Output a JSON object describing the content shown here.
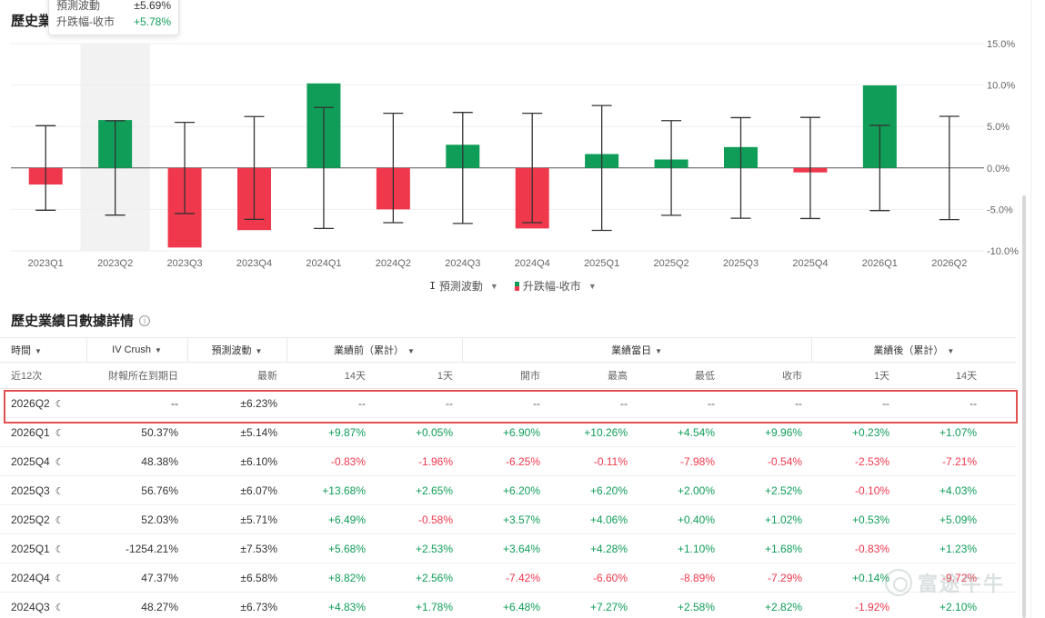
{
  "chart_title": "歷史業績日數據",
  "tooltip": {
    "rows": [
      {
        "label": "預測波動",
        "value": "±5.69%"
      },
      {
        "label": "升跌幅-收市",
        "value": "+5.78%"
      }
    ]
  },
  "legend": {
    "error_label": "預測波動",
    "bar_label": "升跌幅-收市"
  },
  "chart_data": {
    "type": "bar",
    "categories": [
      "2023Q1",
      "2023Q2",
      "2023Q3",
      "2023Q4",
      "2024Q1",
      "2024Q2",
      "2024Q3",
      "2024Q4",
      "2025Q1",
      "2025Q2",
      "2025Q3",
      "2025Q4",
      "2026Q1",
      "2026Q2"
    ],
    "series": [
      {
        "name": "升跌幅-收市",
        "values": [
          -2.0,
          5.78,
          -9.6,
          -7.5,
          10.2,
          -5.0,
          2.8,
          -7.3,
          1.68,
          1.02,
          2.52,
          -0.54,
          9.96,
          null
        ]
      },
      {
        "name": "預測波動",
        "values": [
          5.1,
          5.69,
          5.5,
          6.2,
          7.3,
          6.6,
          6.7,
          6.6,
          7.53,
          5.71,
          6.07,
          6.1,
          5.14,
          6.23
        ]
      }
    ],
    "y_ticks": [
      "15.0%",
      "10.0%",
      "5.0%",
      "0.0%",
      "-5.0%",
      "-10.0%"
    ],
    "ylim": [
      -10,
      15
    ],
    "highlight_index": 1,
    "colors": {
      "up": "#0f9d58",
      "down": "#f0384d",
      "error": "#333333",
      "highlight": "#f2f2f2"
    }
  },
  "section_title": "歷史業績日數據詳情",
  "table": {
    "header1": {
      "time": "時間",
      "iv": "IV Crush",
      "forecast": "預測波動",
      "before": "業績前（累計）",
      "day": "業績當日",
      "after": "業績後（累計）"
    },
    "header2": [
      "近12次",
      "財報所在到期日",
      "最新",
      "14天",
      "1天",
      "開市",
      "最高",
      "最低",
      "收市",
      "1天",
      "14天"
    ],
    "rows": [
      {
        "q": "2026Q2",
        "cells": [
          "--",
          "±6.23%",
          "--",
          "--",
          "--",
          "--",
          "--",
          "--",
          "--",
          "--"
        ]
      },
      {
        "q": "2026Q1",
        "cells": [
          "50.37%",
          "±5.14%",
          "+9.87%",
          "+0.05%",
          "+6.90%",
          "+10.26%",
          "+4.54%",
          "+9.96%",
          "+0.23%",
          "+1.07%"
        ]
      },
      {
        "q": "2025Q4",
        "cells": [
          "48.38%",
          "±6.10%",
          "-0.83%",
          "-1.96%",
          "-6.25%",
          "-0.11%",
          "-7.98%",
          "-0.54%",
          "-2.53%",
          "-7.21%"
        ]
      },
      {
        "q": "2025Q3",
        "cells": [
          "56.76%",
          "±6.07%",
          "+13.68%",
          "+2.65%",
          "+6.20%",
          "+6.20%",
          "+2.00%",
          "+2.52%",
          "-0.10%",
          "+4.03%"
        ]
      },
      {
        "q": "2025Q2",
        "cells": [
          "52.03%",
          "±5.71%",
          "+6.49%",
          "-0.58%",
          "+3.57%",
          "+4.06%",
          "+0.40%",
          "+1.02%",
          "+0.53%",
          "+5.09%"
        ]
      },
      {
        "q": "2025Q1",
        "cells": [
          "-1254.21%",
          "±7.53%",
          "+5.68%",
          "+2.53%",
          "+3.64%",
          "+4.28%",
          "+1.10%",
          "+1.68%",
          "-0.83%",
          "+1.23%"
        ]
      },
      {
        "q": "2024Q4",
        "cells": [
          "47.37%",
          "±6.58%",
          "+8.82%",
          "+2.56%",
          "-7.42%",
          "-6.60%",
          "-8.89%",
          "-7.29%",
          "+0.14%",
          "-9.72%"
        ]
      },
      {
        "q": "2024Q3",
        "cells": [
          "48.27%",
          "±6.73%",
          "+4.83%",
          "+1.78%",
          "+6.48%",
          "+7.27%",
          "+2.58%",
          "+2.82%",
          "-1.92%",
          "+2.10%"
        ]
      }
    ]
  },
  "watermark": "富途牛牛"
}
